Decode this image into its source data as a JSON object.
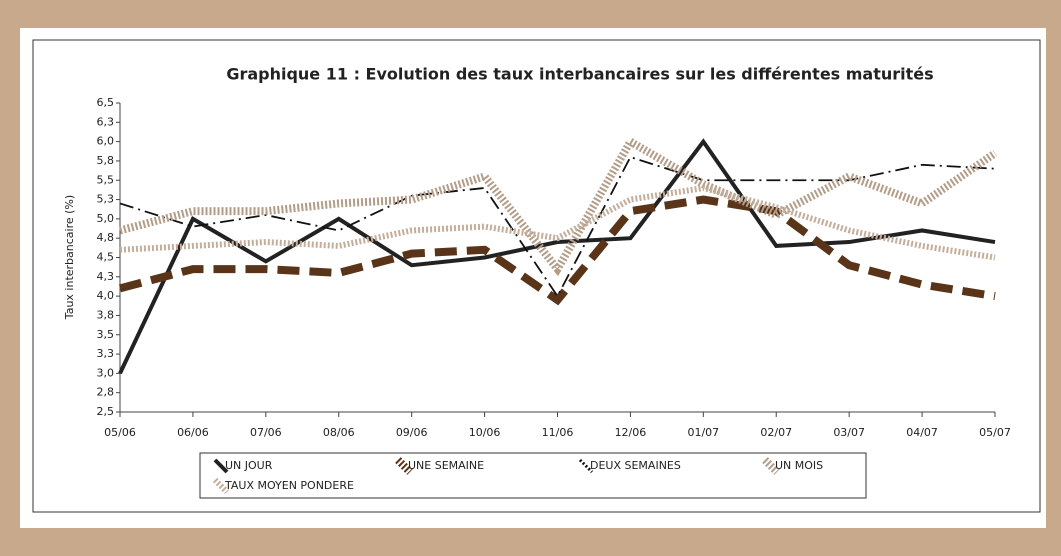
{
  "chart_data": {
    "type": "line",
    "title": "Graphique 11 : Evolution des taux interbancaires sur les différentes maturités",
    "y_label": "Taux interbancaire (%)",
    "categories": [
      "05/06",
      "06/06",
      "07/06",
      "08/06",
      "09/06",
      "10/06",
      "11/06",
      "12/06",
      "01/07",
      "02/07",
      "03/07",
      "04/07",
      "05/07"
    ],
    "series": [
      {
        "name": "UN JOUR",
        "color": "#222222",
        "values": [
          3.0,
          5.0,
          4.45,
          5.0,
          4.4,
          4.5,
          4.7,
          4.75,
          6.0,
          4.65,
          4.7,
          4.85,
          4.7
        ]
      },
      {
        "name": "UNE SEMAINE",
        "color": "#5a3418",
        "values": [
          4.1,
          4.35,
          4.35,
          4.3,
          4.55,
          4.6,
          3.95,
          5.1,
          5.25,
          5.1,
          4.4,
          4.15,
          4.0
        ]
      },
      {
        "name": "DEUX SEMAINES",
        "color": "#111111",
        "values": [
          5.2,
          4.9,
          5.05,
          4.85,
          5.3,
          5.4,
          4.0,
          5.8,
          5.5,
          5.5,
          5.5,
          5.7,
          5.65
        ]
      },
      {
        "name": "UN MOIS",
        "color": "#b39d88",
        "values": [
          4.85,
          5.1,
          5.1,
          5.2,
          5.25,
          5.55,
          4.35,
          6.0,
          5.45,
          5.05,
          5.55,
          5.2,
          5.85
        ]
      },
      {
        "name": "TAUX MOYEN PONDERE",
        "color": "#c4ae9b",
        "values": [
          4.6,
          4.65,
          4.7,
          4.65,
          4.85,
          4.9,
          4.75,
          5.25,
          5.4,
          5.15,
          4.85,
          4.65,
          4.5
        ]
      }
    ],
    "ylim": [
      2.5,
      6.5
    ],
    "yticks": [
      {
        "value": 2.5,
        "label": "2,5"
      },
      {
        "value": 2.75,
        "label": "2,8"
      },
      {
        "value": 3.0,
        "label": "3,0"
      },
      {
        "value": 3.25,
        "label": "3,3"
      },
      {
        "value": 3.5,
        "label": "3,5"
      },
      {
        "value": 3.75,
        "label": "3,8"
      },
      {
        "value": 4.0,
        "label": "4,0"
      },
      {
        "value": 4.25,
        "label": "4,3"
      },
      {
        "value": 4.5,
        "label": "4,5"
      },
      {
        "value": 4.75,
        "label": "4,8"
      },
      {
        "value": 5.0,
        "label": "5,0"
      },
      {
        "value": 5.25,
        "label": "5,3"
      },
      {
        "value": 5.5,
        "label": "5,5"
      },
      {
        "value": 5.75,
        "label": "5,8"
      },
      {
        "value": 6.0,
        "label": "6,0"
      },
      {
        "value": 6.25,
        "label": "6,3"
      },
      {
        "value": 6.5,
        "label": "6,5"
      }
    ]
  }
}
